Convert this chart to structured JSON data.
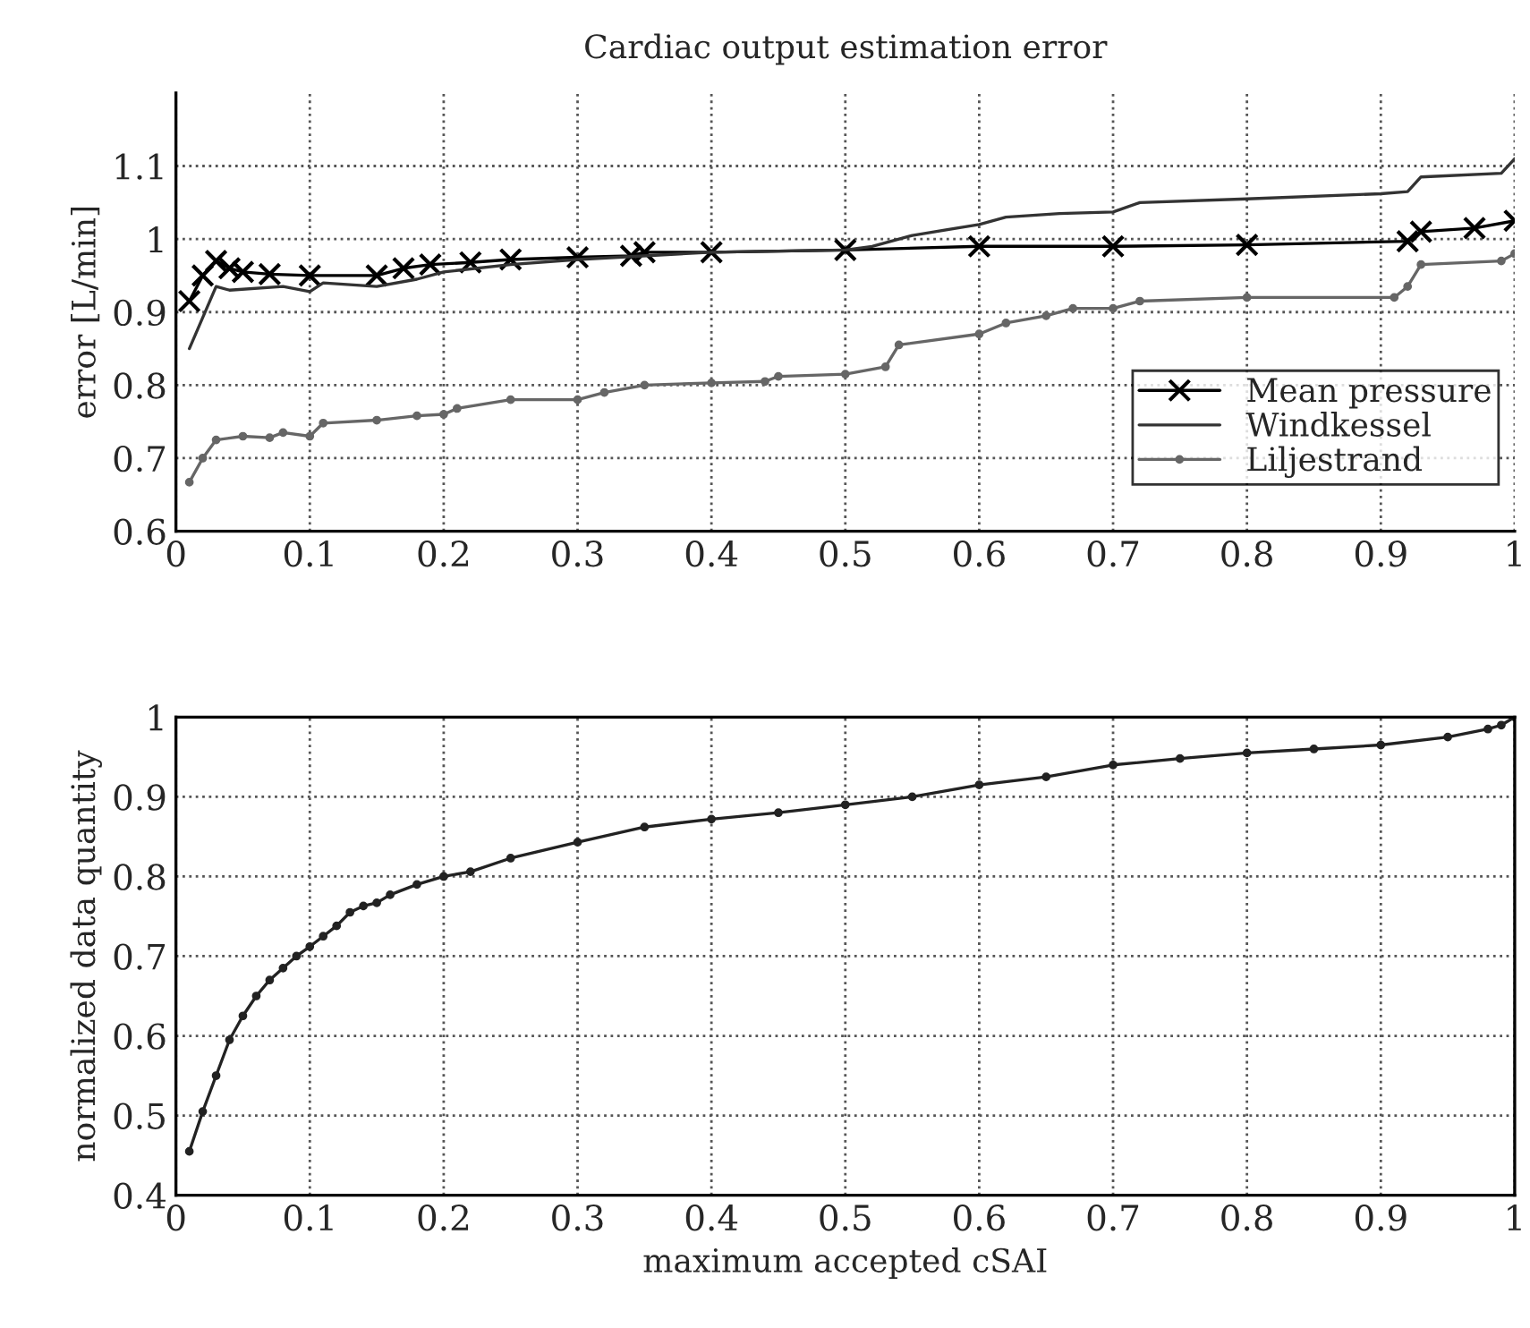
{
  "chart_data": [
    {
      "type": "line",
      "title": "Cardiac output estimation error",
      "ylabel": "error [L/min]",
      "xlim": [
        0,
        1
      ],
      "ylim": [
        0.6,
        1.2
      ],
      "xticks": [
        0,
        0.1,
        0.2,
        0.3,
        0.4,
        0.5,
        0.6,
        0.7,
        0.8,
        0.9,
        1
      ],
      "yticks": [
        0.6,
        0.7,
        0.8,
        0.9,
        1,
        1.1
      ],
      "grid": true,
      "legend": "bottom right",
      "series": [
        {
          "name": "Mean pressure",
          "color": "#000000",
          "marker": "cross",
          "x": [
            0.01,
            0.02,
            0.03,
            0.04,
            0.05,
            0.07,
            0.1,
            0.15,
            0.17,
            0.19,
            0.22,
            0.25,
            0.3,
            0.34,
            0.35,
            0.4,
            0.5,
            0.6,
            0.7,
            0.8,
            0.92,
            0.93,
            0.97,
            1.0
          ],
          "values": [
            0.915,
            0.95,
            0.97,
            0.96,
            0.955,
            0.952,
            0.95,
            0.95,
            0.96,
            0.965,
            0.968,
            0.972,
            0.975,
            0.977,
            0.982,
            0.982,
            0.985,
            0.99,
            0.99,
            0.992,
            0.997,
            1.01,
            1.015,
            1.025
          ]
        },
        {
          "name": "Windkessel",
          "color": "#333333",
          "marker": "none",
          "x": [
            0.01,
            0.03,
            0.04,
            0.08,
            0.1,
            0.11,
            0.15,
            0.18,
            0.2,
            0.25,
            0.3,
            0.4,
            0.5,
            0.52,
            0.55,
            0.6,
            0.62,
            0.66,
            0.7,
            0.72,
            0.8,
            0.9,
            0.92,
            0.93,
            0.99,
            1.0
          ],
          "values": [
            0.85,
            0.935,
            0.93,
            0.935,
            0.928,
            0.94,
            0.935,
            0.945,
            0.955,
            0.965,
            0.972,
            0.982,
            0.985,
            0.99,
            1.005,
            1.02,
            1.03,
            1.035,
            1.037,
            1.05,
            1.055,
            1.062,
            1.065,
            1.085,
            1.09,
            1.11
          ]
        },
        {
          "name": "Liljestrand",
          "color": "#666666",
          "marker": "circle",
          "x": [
            0.01,
            0.02,
            0.03,
            0.05,
            0.07,
            0.08,
            0.1,
            0.11,
            0.15,
            0.18,
            0.2,
            0.21,
            0.25,
            0.3,
            0.32,
            0.35,
            0.4,
            0.44,
            0.45,
            0.5,
            0.53,
            0.54,
            0.6,
            0.62,
            0.65,
            0.67,
            0.7,
            0.72,
            0.8,
            0.91,
            0.92,
            0.93,
            0.99,
            1.0
          ],
          "values": [
            0.667,
            0.7,
            0.725,
            0.73,
            0.728,
            0.735,
            0.73,
            0.748,
            0.752,
            0.758,
            0.76,
            0.768,
            0.78,
            0.78,
            0.79,
            0.8,
            0.803,
            0.805,
            0.812,
            0.815,
            0.825,
            0.855,
            0.87,
            0.885,
            0.895,
            0.905,
            0.905,
            0.915,
            0.92,
            0.92,
            0.935,
            0.965,
            0.97,
            0.98
          ]
        }
      ]
    },
    {
      "type": "line",
      "xlabel": "maximum accepted cSAI",
      "ylabel": "normalized data quantity",
      "xlim": [
        0,
        1
      ],
      "ylim": [
        0.4,
        1
      ],
      "xticks": [
        0,
        0.1,
        0.2,
        0.3,
        0.4,
        0.5,
        0.6,
        0.7,
        0.8,
        0.9,
        1
      ],
      "yticks": [
        0.4,
        0.5,
        0.6,
        0.7,
        0.8,
        0.9,
        1
      ],
      "grid": true,
      "marker": "circle",
      "series": [
        {
          "color": "#222222",
          "x": [
            0.01,
            0.02,
            0.03,
            0.04,
            0.05,
            0.06,
            0.07,
            0.08,
            0.09,
            0.1,
            0.11,
            0.12,
            0.13,
            0.14,
            0.15,
            0.16,
            0.18,
            0.2,
            0.22,
            0.25,
            0.3,
            0.35,
            0.4,
            0.45,
            0.5,
            0.55,
            0.6,
            0.65,
            0.7,
            0.75,
            0.8,
            0.85,
            0.9,
            0.95,
            0.98,
            0.99,
            1.0
          ],
          "values": [
            0.455,
            0.505,
            0.55,
            0.595,
            0.625,
            0.65,
            0.67,
            0.685,
            0.7,
            0.712,
            0.725,
            0.738,
            0.755,
            0.763,
            0.767,
            0.777,
            0.79,
            0.8,
            0.806,
            0.823,
            0.843,
            0.862,
            0.872,
            0.88,
            0.89,
            0.9,
            0.915,
            0.925,
            0.94,
            0.948,
            0.955,
            0.96,
            0.965,
            0.975,
            0.985,
            0.99,
            1.0
          ]
        }
      ]
    }
  ]
}
